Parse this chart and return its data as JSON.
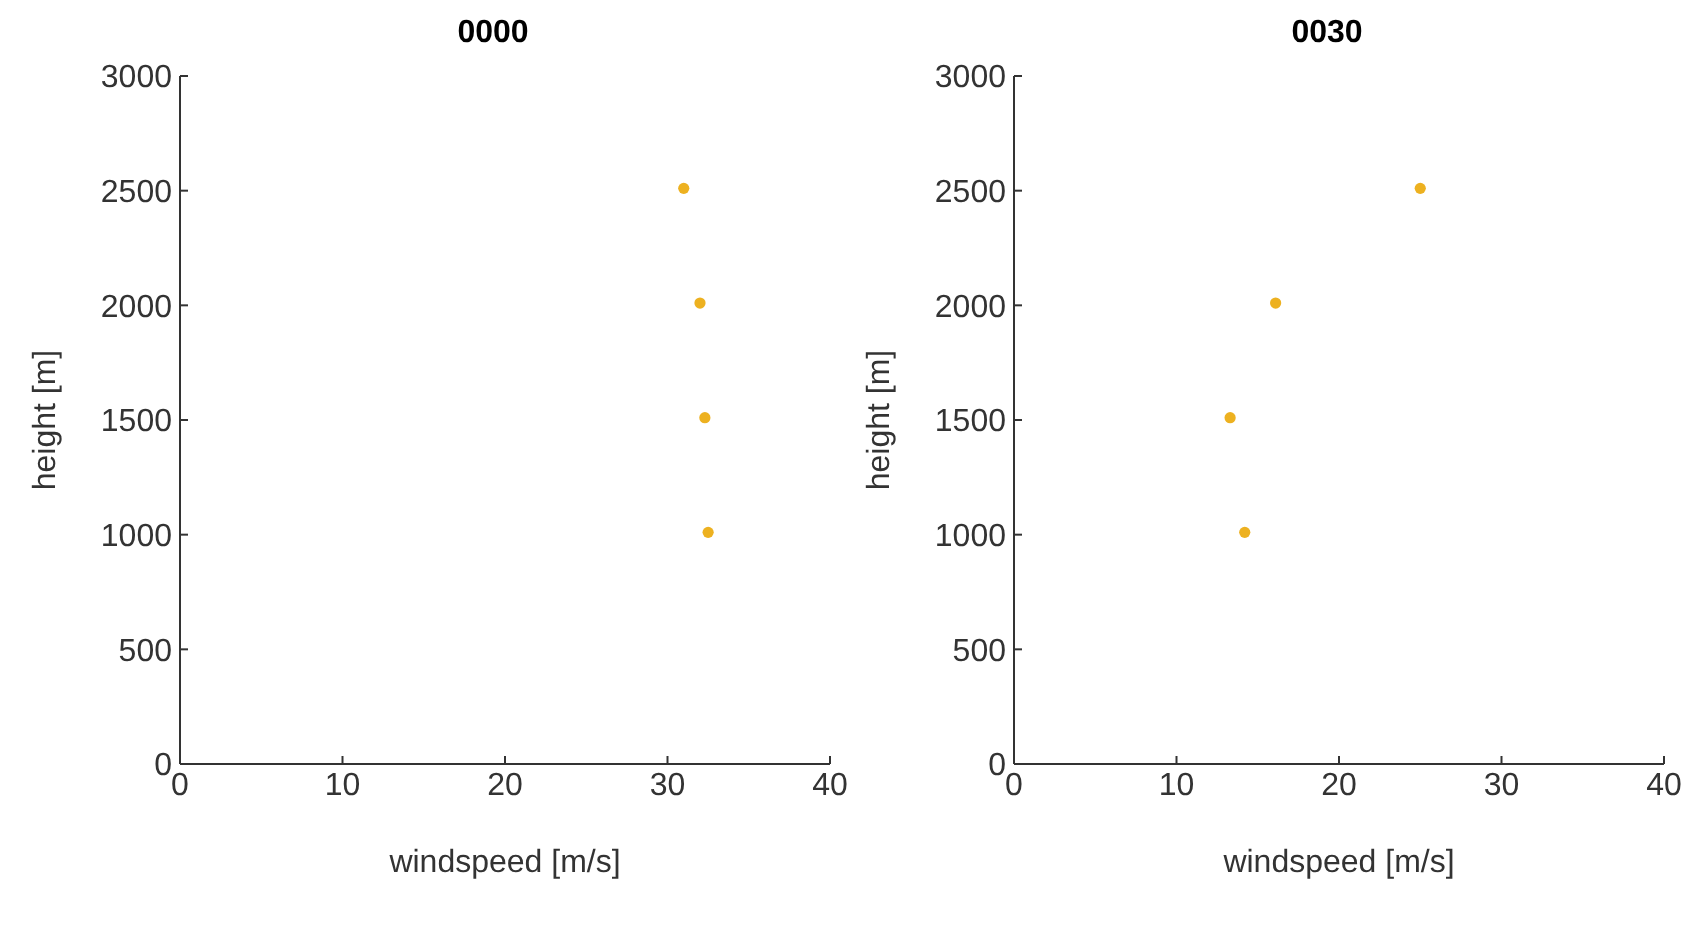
{
  "chart_data": [
    {
      "type": "scatter",
      "title": "0000",
      "xlabel": "windspeed [m/s]",
      "ylabel": "height [m]",
      "x": [
        31.0,
        32.0,
        32.3,
        32.5
      ],
      "series": [
        {
          "color": "#edb120",
          "values": [
            2510,
            2010,
            1510,
            1010
          ]
        }
      ],
      "xlim": [
        0,
        40
      ],
      "xticks": [
        0,
        10,
        20,
        30,
        40
      ],
      "ylim": [
        0,
        3000
      ],
      "yticks": [
        0,
        500,
        1000,
        1500,
        2000,
        2500,
        3000
      ],
      "grid": false,
      "legend": false,
      "marker": "circle"
    },
    {
      "type": "scatter",
      "title": "0030",
      "xlabel": "windspeed [m/s]",
      "ylabel": "height [m]",
      "x": [
        25.0,
        16.1,
        13.3,
        14.2
      ],
      "series": [
        {
          "color": "#edb120",
          "values": [
            2510,
            2010,
            1510,
            1010
          ]
        }
      ],
      "xlim": [
        0,
        40
      ],
      "xticks": [
        0,
        10,
        20,
        30,
        40
      ],
      "ylim": [
        0,
        3000
      ],
      "yticks": [
        0,
        500,
        1000,
        1500,
        2000,
        2500,
        3000
      ],
      "grid": false,
      "legend": false,
      "marker": "circle"
    }
  ]
}
